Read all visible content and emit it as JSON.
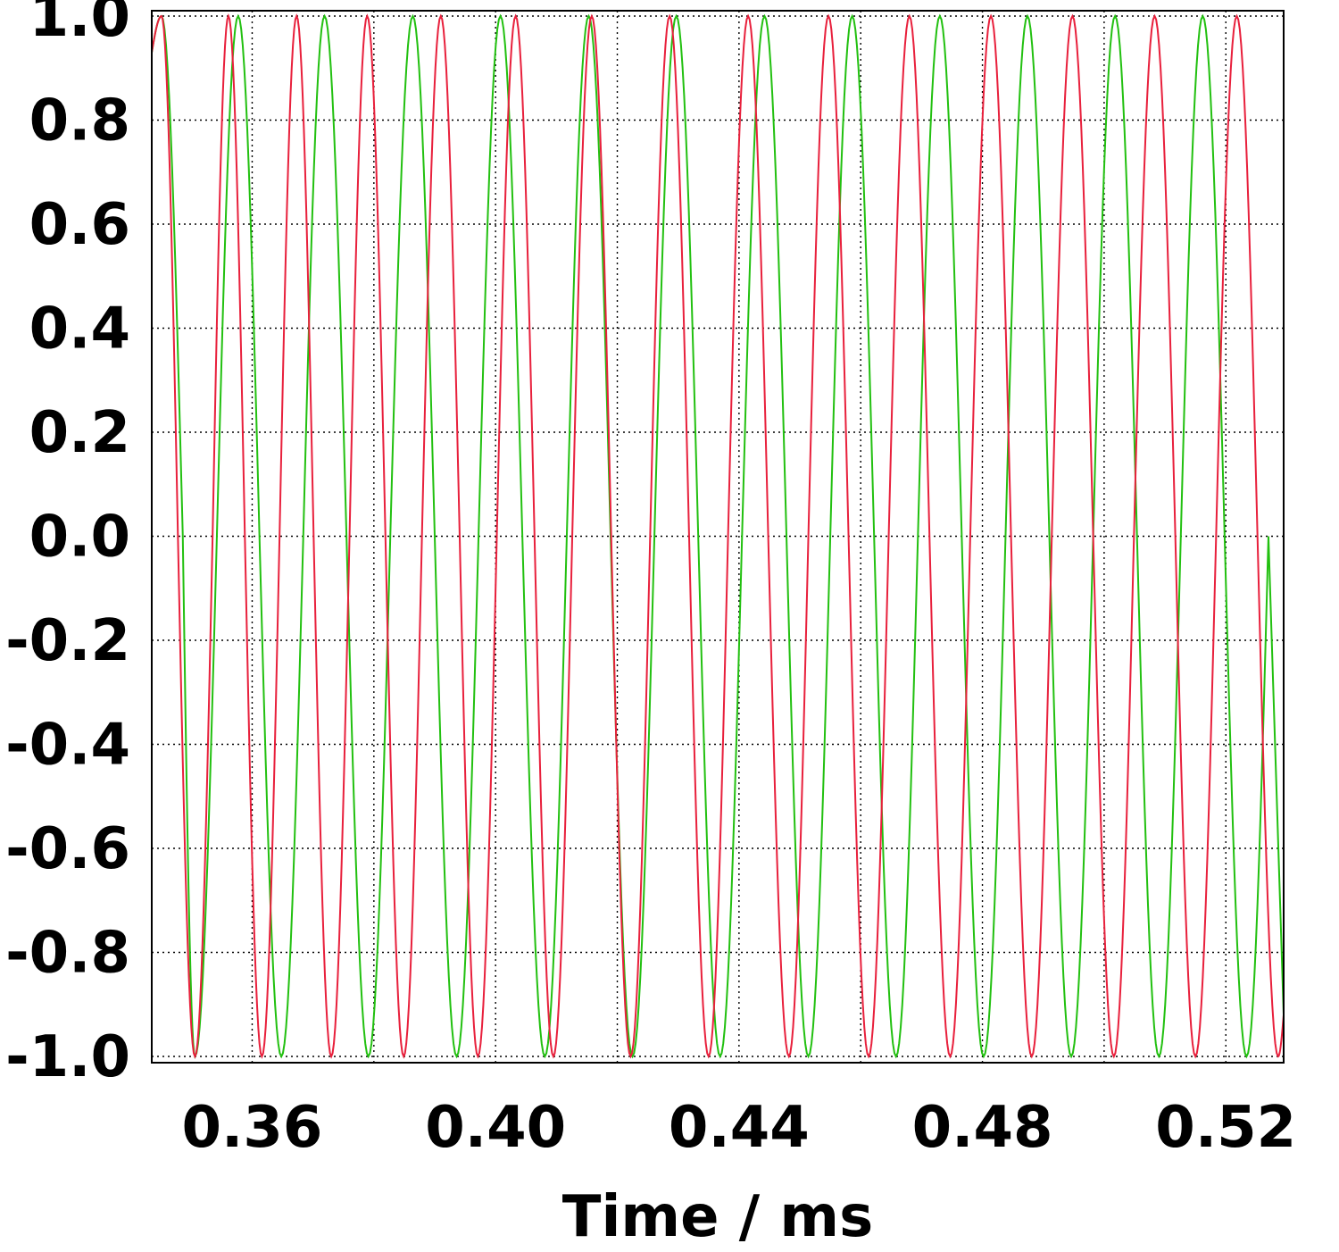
{
  "chart_data": {
    "type": "line",
    "title": "",
    "xlabel": "Time / ms",
    "ylabel": "",
    "xlim": [
      0.3435,
      0.5295
    ],
    "ylim": [
      -1.02,
      1.02
    ],
    "x_ticks": [
      0.36,
      0.4,
      0.44,
      0.48,
      0.52
    ],
    "x_tick_labels": [
      "0.36",
      "0.40",
      "0.44",
      "0.48",
      "0.52"
    ],
    "y_ticks": [
      1.0,
      0.8,
      0.6,
      0.4,
      0.2,
      0.0,
      -0.2,
      -0.4,
      -0.6,
      -0.8,
      -1.0
    ],
    "y_tick_labels": [
      "1.0",
      "0.8",
      "0.6",
      "0.4",
      "0.2",
      "0.0",
      "-0.2",
      "-0.4",
      "-0.6",
      "-0.8",
      "-1.0"
    ],
    "x_minor_ticks": [
      0.38,
      0.42,
      0.46,
      0.5
    ],
    "grid": true,
    "legend": "none",
    "series": [
      {
        "color": "#22c010",
        "x": [
          0.3435,
          0.3451,
          0.3486,
          0.3506,
          0.3542,
          0.3577,
          0.3612,
          0.3648,
          0.3684,
          0.3719,
          0.3755,
          0.3791,
          0.3827,
          0.3864,
          0.39,
          0.3936,
          0.3972,
          0.4008,
          0.4044,
          0.4081,
          0.4117,
          0.4153,
          0.4189,
          0.4225,
          0.4261,
          0.4297,
          0.4333,
          0.4369,
          0.4405,
          0.4442,
          0.4478,
          0.4514,
          0.455,
          0.4586,
          0.4622,
          0.4658,
          0.4694,
          0.473,
          0.4766,
          0.4802,
          0.4838,
          0.4874,
          0.491,
          0.4946,
          0.4982,
          0.5018,
          0.5054,
          0.509,
          0.5126,
          0.5162,
          0.5198,
          0.5234,
          0.527,
          0.5295
        ],
        "y": [
          0.93,
          1.0,
          0.0,
          -1.0,
          0.0,
          1.0,
          0.0,
          -1.0,
          0.0,
          1.0,
          0.0,
          -1.0,
          0.0,
          1.0,
          0.0,
          -1.0,
          0.0,
          1.0,
          0.0,
          -1.0,
          0.0,
          1.0,
          0.0,
          -1.0,
          0.0,
          1.0,
          0.0,
          -1.0,
          0.0,
          1.0,
          0.0,
          -1.0,
          0.0,
          1.0,
          0.0,
          -1.0,
          0.0,
          1.0,
          0.0,
          -1.0,
          0.0,
          1.0,
          0.0,
          -1.0,
          0.0,
          1.0,
          0.0,
          -1.0,
          0.0,
          1.0,
          0.0,
          -1.0,
          0.0,
          -0.92
        ]
      },
      {
        "color": "#e8203c",
        "x": [
          0.3435,
          0.3451,
          0.3478,
          0.3506,
          0.3535,
          0.3561,
          0.3588,
          0.3616,
          0.3645,
          0.3673,
          0.3701,
          0.373,
          0.376,
          0.3789,
          0.3819,
          0.3849,
          0.3879,
          0.391,
          0.3941,
          0.3971,
          0.4002,
          0.4033,
          0.4064,
          0.4095,
          0.4126,
          0.4158,
          0.419,
          0.4222,
          0.4254,
          0.4286,
          0.4318,
          0.435,
          0.4382,
          0.4415,
          0.4448,
          0.4482,
          0.4514,
          0.4547,
          0.458,
          0.4613,
          0.4646,
          0.468,
          0.4713,
          0.4747,
          0.478,
          0.4814,
          0.4847,
          0.4881,
          0.4914,
          0.4948,
          0.4982,
          0.5016,
          0.5049,
          0.5083,
          0.5117,
          0.515,
          0.5184,
          0.5218,
          0.5252,
          0.5286,
          0.5295
        ],
        "y": [
          0.93,
          1.0,
          0.0,
          -1.0,
          0.0,
          1.0,
          0.0,
          -1.0,
          0.0,
          1.0,
          0.0,
          -1.0,
          0.0,
          1.0,
          0.0,
          -1.0,
          0.0,
          1.0,
          0.0,
          -1.0,
          0.0,
          1.0,
          0.0,
          -1.0,
          0.0,
          1.0,
          0.0,
          -1.0,
          0.0,
          1.0,
          0.0,
          -1.0,
          0.0,
          1.0,
          0.0,
          -1.0,
          0.0,
          1.0,
          0.0,
          -1.0,
          0.0,
          1.0,
          0.0,
          -1.0,
          0.0,
          1.0,
          0.0,
          -1.0,
          0.0,
          1.0,
          0.0,
          -1.0,
          0.0,
          1.0,
          0.0,
          -1.0,
          0.0,
          1.0,
          0.0,
          -1.0,
          -0.92
        ]
      }
    ]
  }
}
